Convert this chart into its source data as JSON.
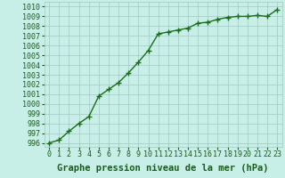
{
  "x": [
    0,
    1,
    2,
    3,
    4,
    5,
    6,
    7,
    8,
    9,
    10,
    11,
    12,
    13,
    14,
    15,
    16,
    17,
    18,
    19,
    20,
    21,
    22,
    23
  ],
  "y": [
    996.0,
    996.3,
    997.2,
    998.0,
    998.7,
    1000.8,
    1001.5,
    1002.2,
    1003.2,
    1004.3,
    1005.5,
    1007.2,
    1007.4,
    1007.6,
    1007.8,
    1008.3,
    1008.4,
    1008.7,
    1008.9,
    1009.0,
    1009.0,
    1009.1,
    1009.0,
    1009.7
  ],
  "line_color": "#1a6e1a",
  "marker": "+",
  "marker_size": 4,
  "bg_color": "#c8eee8",
  "grid_color": "#a0c8c0",
  "text_color": "#1a5c1a",
  "xlabel": "Graphe pression niveau de la mer (hPa)",
  "xlabel_fontsize": 7.5,
  "ylabel_ticks": [
    996,
    997,
    998,
    999,
    1000,
    1001,
    1002,
    1003,
    1004,
    1005,
    1006,
    1007,
    1008,
    1009,
    1010
  ],
  "xlim": [
    -0.5,
    23.5
  ],
  "ylim": [
    995.6,
    1010.5
  ],
  "tick_fontsize": 6.0,
  "line_width": 1.0
}
